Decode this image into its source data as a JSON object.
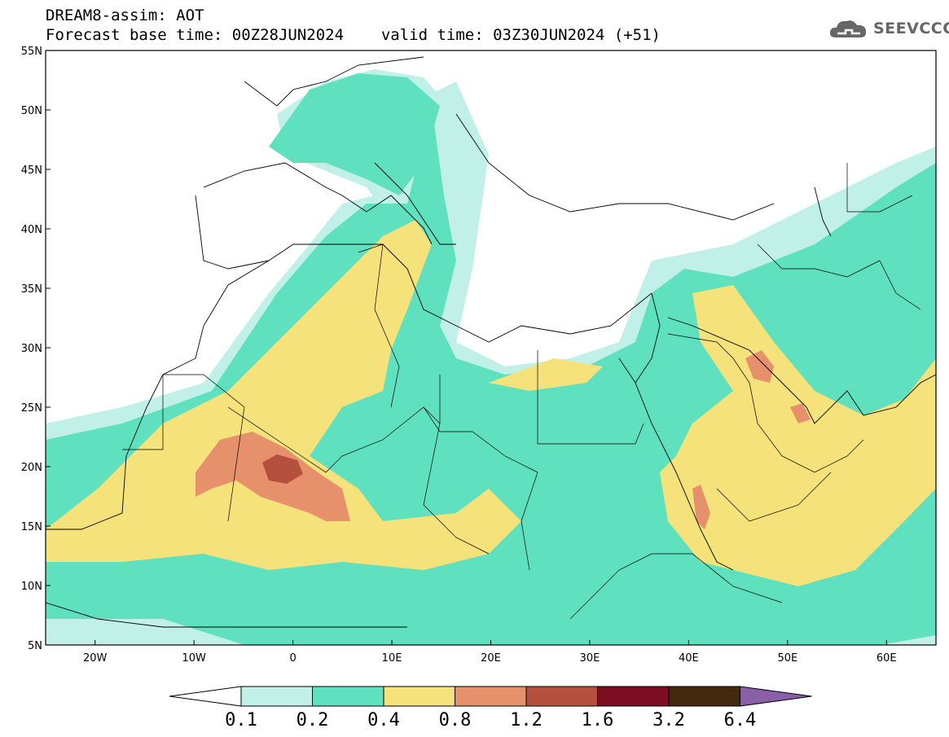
{
  "header": {
    "title": "DREAM8-assim: AOT",
    "base_time": "Forecast base time: 00Z28JUN2024",
    "valid_time": "valid time: 03Z30JUN2024 (+51)",
    "logo_text": "SEEVCCC"
  },
  "map": {
    "lon_range": [
      -25,
      65
    ],
    "lat_range": [
      5,
      55
    ],
    "lat_ticks": [
      {
        "lat": 55,
        "label": "55N"
      },
      {
        "lat": 50,
        "label": "50N"
      },
      {
        "lat": 45,
        "label": "45N"
      },
      {
        "lat": 40,
        "label": "40N"
      },
      {
        "lat": 35,
        "label": "35N"
      },
      {
        "lat": 30,
        "label": "30N"
      },
      {
        "lat": 25,
        "label": "25N"
      },
      {
        "lat": 20,
        "label": "20N"
      },
      {
        "lat": 15,
        "label": "15N"
      },
      {
        "lat": 10,
        "label": "10N"
      },
      {
        "lat": 5,
        "label": "5N"
      }
    ],
    "lon_ticks": [
      {
        "lon": -20,
        "label": "20W"
      },
      {
        "lon": -10,
        "label": "10W"
      },
      {
        "lon": 0,
        "label": "0"
      },
      {
        "lon": 10,
        "label": "10E"
      },
      {
        "lon": 20,
        "label": "20E"
      },
      {
        "lon": 30,
        "label": "30E"
      },
      {
        "lon": 40,
        "label": "40E"
      },
      {
        "lon": 50,
        "label": "50E"
      },
      {
        "lon": 60,
        "label": "60E"
      }
    ]
  },
  "colorbar": {
    "colors": [
      "#ffffff",
      "#c0f0e8",
      "#5fe1bf",
      "#f5e27a",
      "#e6906c",
      "#b5503e",
      "#7d0d22",
      "#44270f",
      "#8b5fa8"
    ],
    "labels": [
      "0.1",
      "0.2",
      "0.4",
      "0.8",
      "1.2",
      "1.6",
      "3.2",
      "6.4"
    ]
  }
}
